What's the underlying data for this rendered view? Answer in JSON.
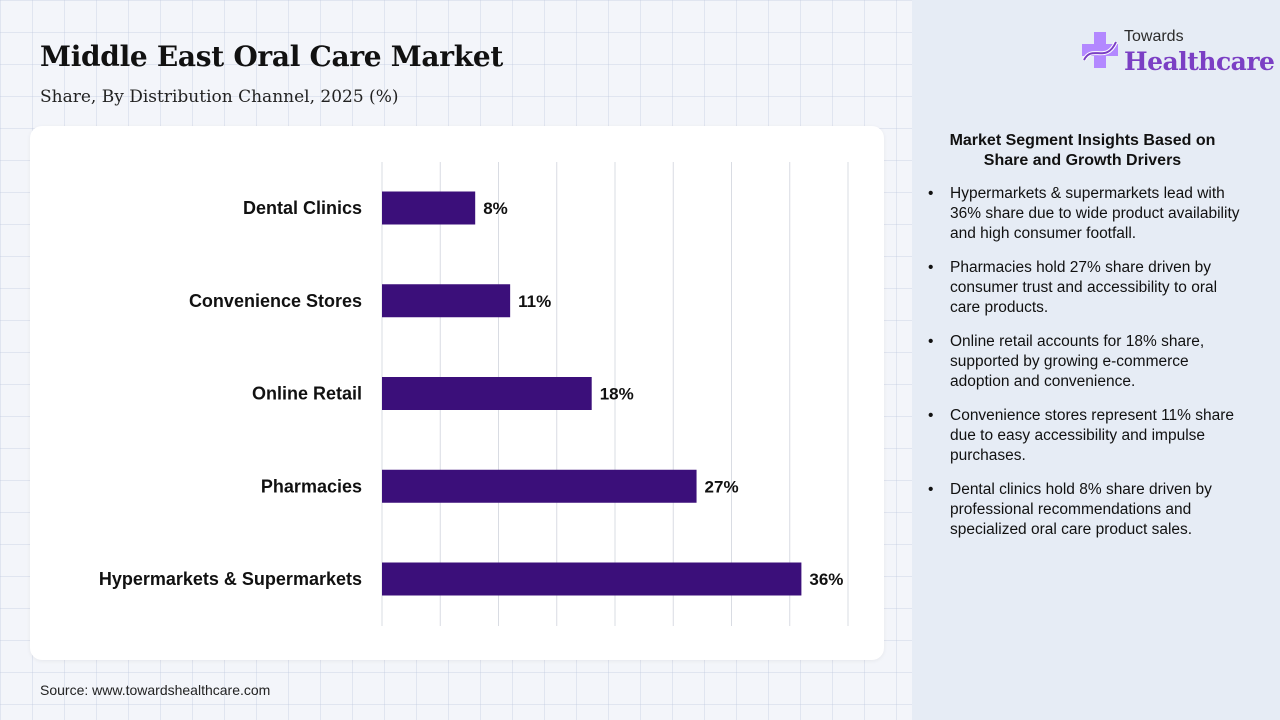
{
  "header": {
    "title": "Middle East Oral Care Market",
    "subtitle": "Share, By Distribution Channel, 2025 (%)"
  },
  "logo": {
    "top_text": "Towards",
    "main_text": "Healthcare",
    "icon": "medical-cross-icon",
    "colors": {
      "primary": "#7b3fc4",
      "secondary": "#b388ff"
    }
  },
  "chart_data": {
    "type": "bar",
    "orientation": "horizontal",
    "categories": [
      "Dental Clinics",
      "Convenience Stores",
      "Online Retail",
      "Pharmacies",
      "Hypermarkets & Supermarkets"
    ],
    "values": [
      8,
      11,
      18,
      27,
      36
    ],
    "value_labels": [
      "8%",
      "11%",
      "18%",
      "27%",
      "36%"
    ],
    "xlim": [
      0,
      40
    ],
    "grid": true,
    "bar_color": "#3b0f7a"
  },
  "insights": {
    "title": "Market Segment Insights Based on Share and Growth Drivers",
    "bullet": "•",
    "items": [
      "Hypermarkets & supermarkets lead with 36% share due to wide product availability and high consumer footfall.",
      "Pharmacies hold 27% share driven by consumer trust and accessibility to oral care products.",
      "Online retail accounts for 18% share, supported by growing e-commerce adoption and convenience.",
      "Convenience stores represent 11% share due to easy accessibility and impulse purchases.",
      "Dental clinics hold 8% share driven by professional recommendations and specialized oral care product sales."
    ]
  },
  "footer": {
    "source": "Source: www.towardshealthcare.com"
  }
}
